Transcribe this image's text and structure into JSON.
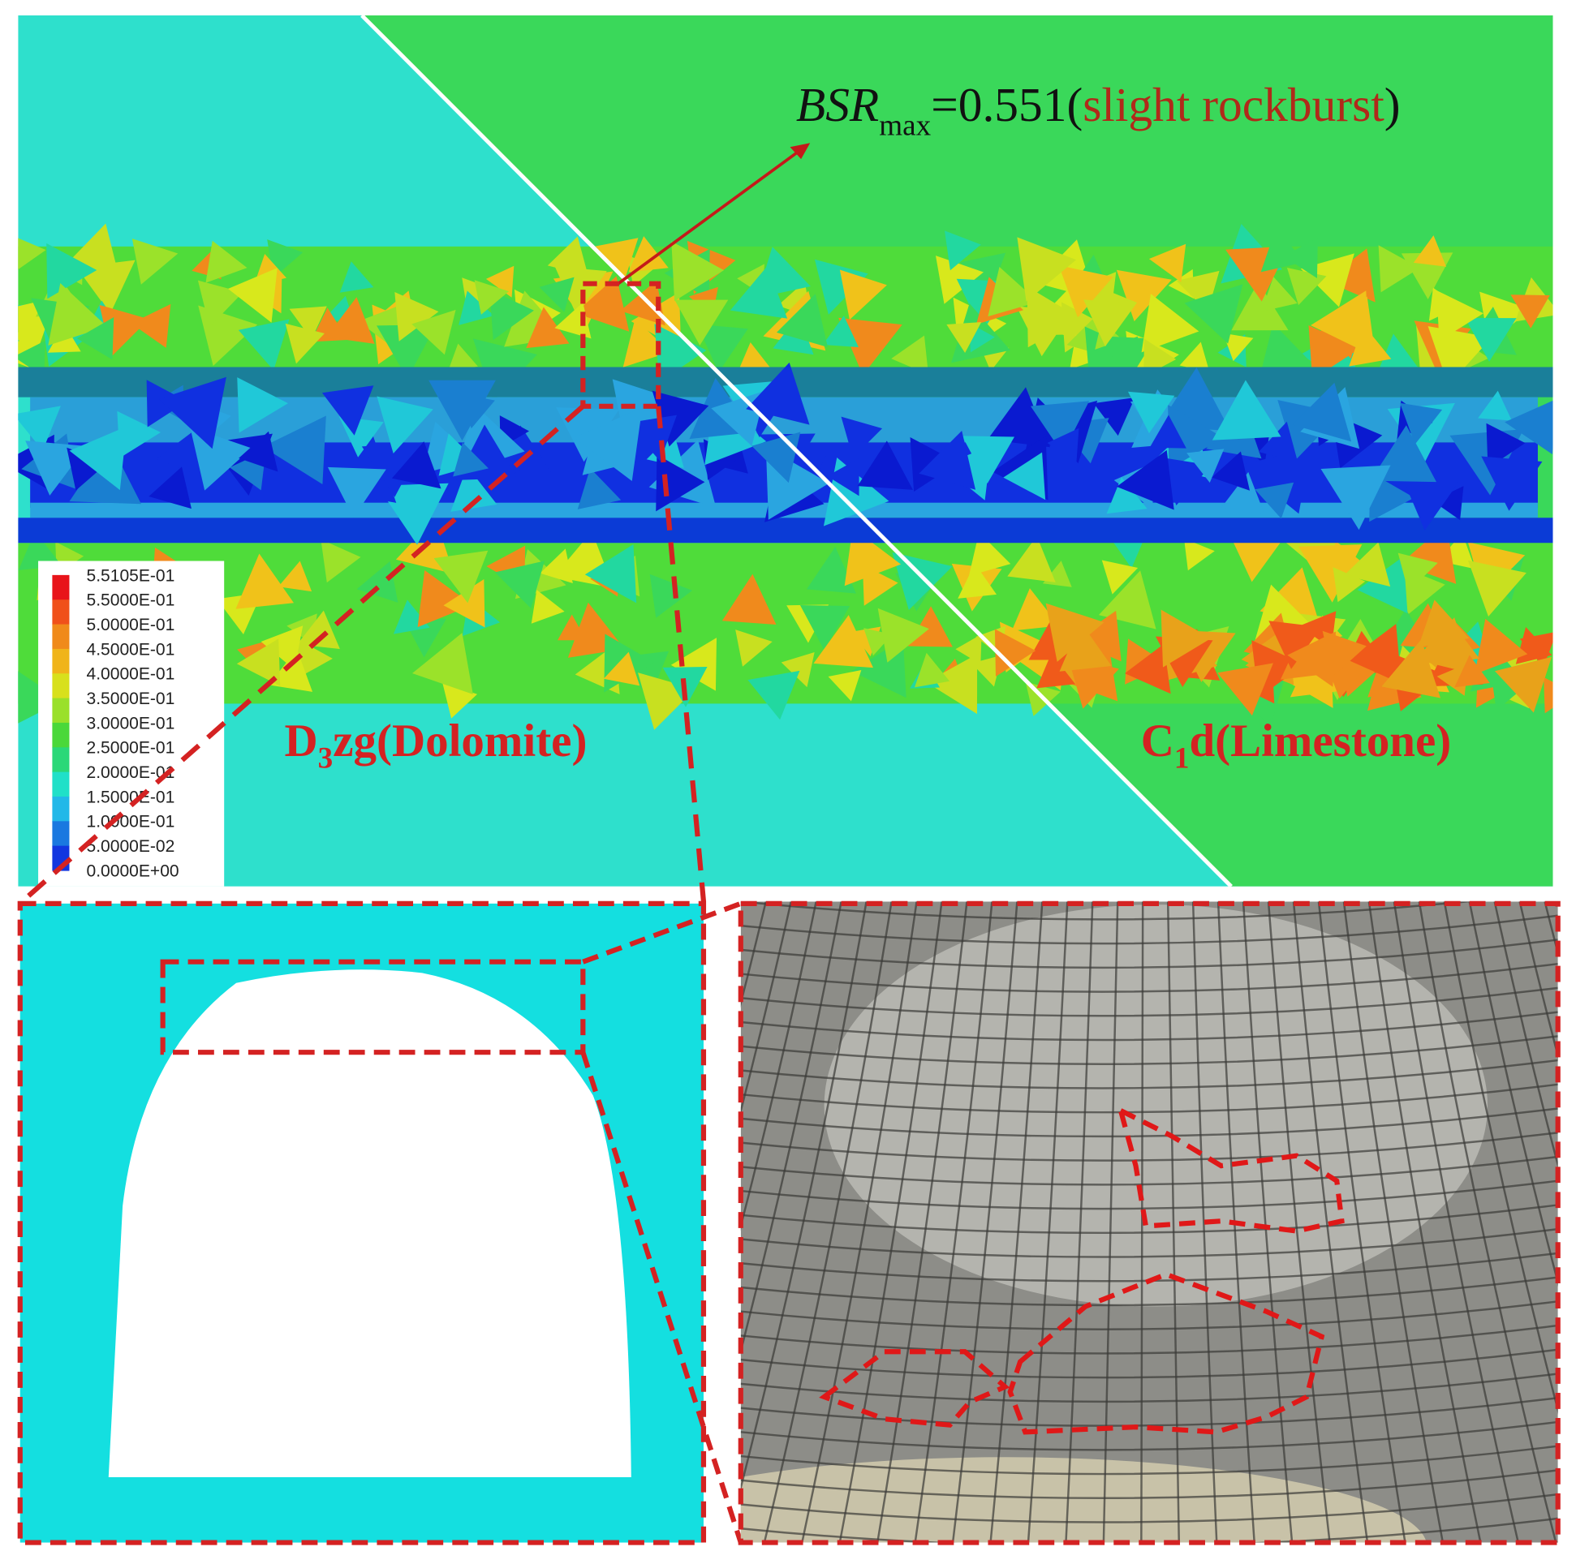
{
  "annotation": {
    "symbol": "BSR",
    "subscript": "max",
    "value": "=0.551(",
    "description": "slight rockburst",
    "close": ")"
  },
  "legend": {
    "labels": [
      "5.5105E-01",
      "5.5000E-01",
      "5.0000E-01",
      "4.5000E-01",
      "4.0000E-01",
      "3.5000E-01",
      "3.0000E-01",
      "2.5000E-01",
      "2.0000E-01",
      "1.5000E-01",
      "1.0000E-01",
      "5.0000E-02",
      "0.0000E+00"
    ]
  },
  "zones": [
    {
      "symbol": "D",
      "subscript": "3",
      "name": "zg(Dolomite)"
    },
    {
      "symbol": "C",
      "subscript": "1",
      "name": "d(Limestone)"
    }
  ]
}
